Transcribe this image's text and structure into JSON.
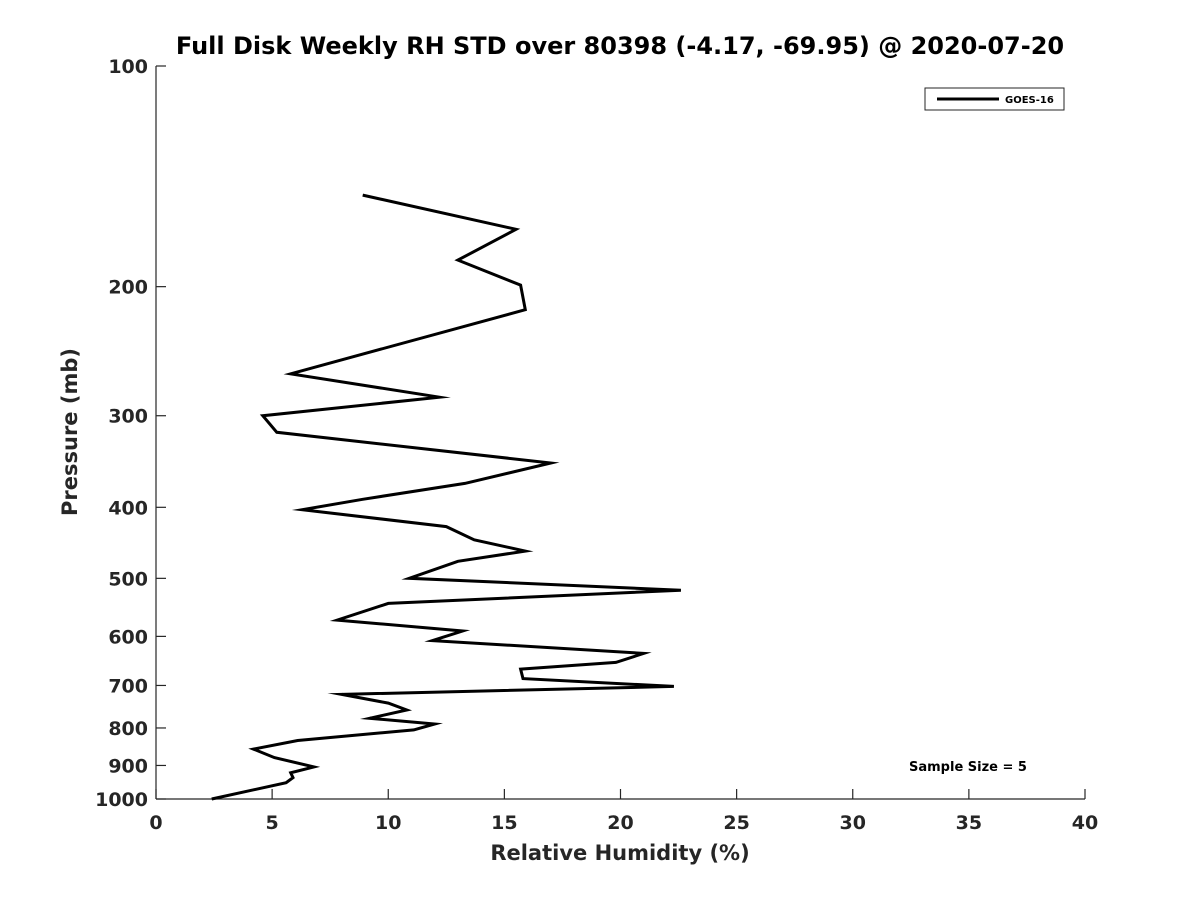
{
  "chart_data": {
    "type": "line",
    "title": "Full Disk Weekly RH STD over 80398 (-4.17, -69.95) @ 2020-07-20",
    "xlabel": "Relative Humidity (%)",
    "ylabel": "Pressure (mb)",
    "xlim": [
      0,
      40
    ],
    "ylim": [
      100,
      1000
    ],
    "yscale": "log",
    "reverse_y": true,
    "xticks": [
      0,
      5,
      10,
      15,
      20,
      25,
      30,
      35,
      40
    ],
    "yticks": [
      100,
      200,
      300,
      400,
      500,
      600,
      700,
      800,
      900,
      1000
    ],
    "grid": false,
    "legend_position": "top-right",
    "annotation": "Sample Size = 5",
    "series": [
      {
        "name": "GOES-16",
        "color": "#000000",
        "x": [
          8.9,
          15.5,
          13.0,
          15.7,
          15.9,
          5.8,
          12.2,
          4.6,
          5.2,
          17.0,
          13.3,
          8.9,
          6.3,
          12.5,
          13.7,
          15.9,
          13.0,
          10.9,
          22.6,
          10.0,
          7.8,
          13.2,
          11.9,
          21.0,
          19.8,
          15.7,
          15.8,
          22.3,
          8.0,
          10.0,
          10.8,
          9.2,
          12.0,
          11.1,
          6.1,
          4.2,
          5.1,
          6.8,
          5.8,
          5.9,
          5.6,
          2.4
        ],
        "y": [
          150,
          167,
          184,
          199,
          215,
          263,
          283,
          300,
          316,
          348,
          371,
          390,
          403,
          425,
          443,
          459,
          474,
          500,
          519,
          541,
          570,
          590,
          608,
          633,
          651,
          665,
          685,
          702,
          720,
          740,
          756,
          776,
          790,
          805,
          832,
          855,
          878,
          904,
          921,
          935,
          950,
          1000
        ]
      }
    ]
  }
}
